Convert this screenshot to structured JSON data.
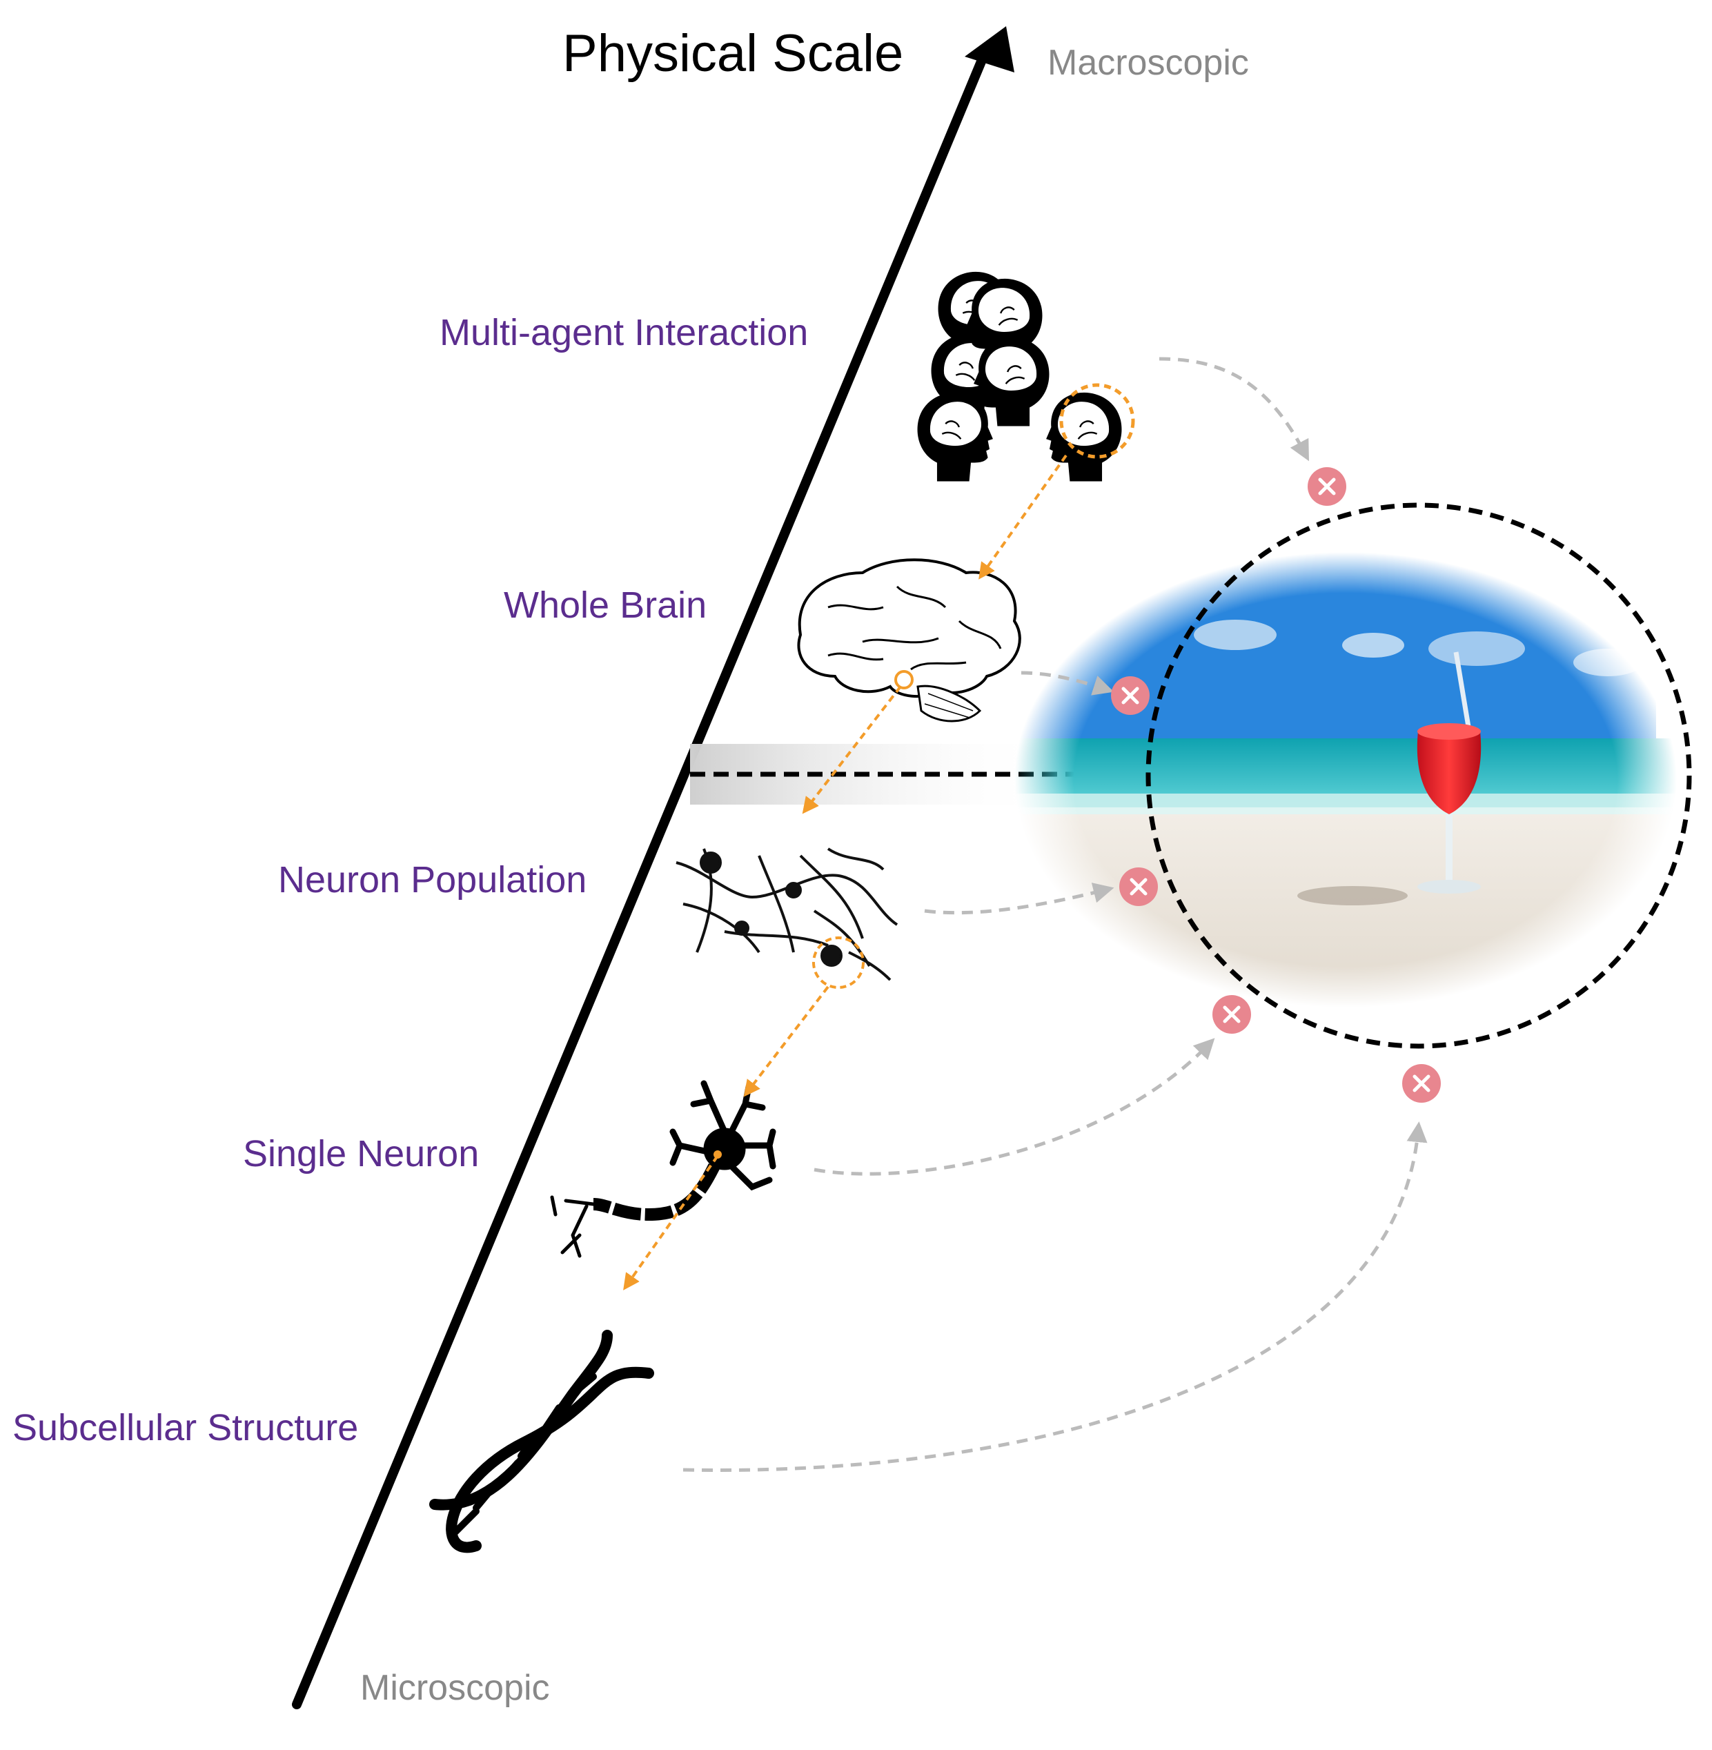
{
  "title": "Physical Scale",
  "axis": {
    "top_label": "Macroscopic",
    "bottom_label": "Microscopic"
  },
  "levels": [
    {
      "label": "Multi-agent Interaction",
      "icon": "heads-group-icon"
    },
    {
      "label": "Whole Brain",
      "icon": "brain-icon"
    },
    {
      "label": "Neuron Population",
      "icon": "neuron-network-icon"
    },
    {
      "label": "Single Neuron",
      "icon": "neuron-icon"
    },
    {
      "label": "Subcellular Structure",
      "icon": "dna-icon"
    }
  ],
  "target_image": "beach-cocktail-image",
  "colors": {
    "level_label": "#5b2d8e",
    "zoom_arrow": "#f39c2a",
    "fail_arrow": "#bbbbbb",
    "fail_marker": "#e8868f",
    "axis": "#000000"
  }
}
